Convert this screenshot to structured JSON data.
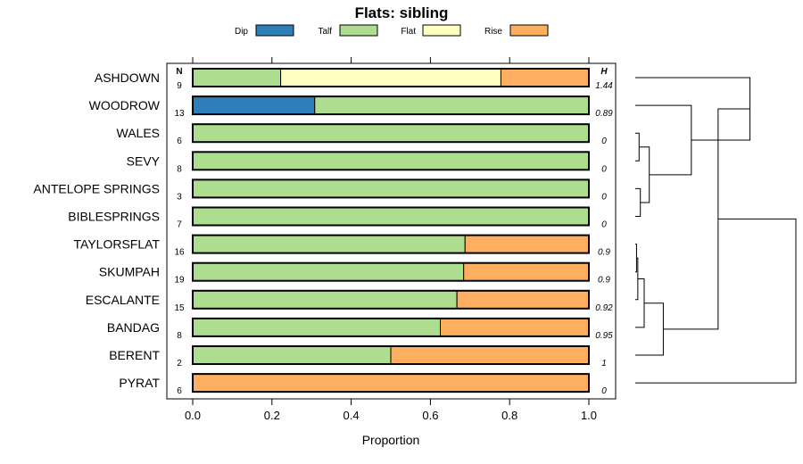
{
  "chart_data": {
    "type": "bar",
    "stacked": true,
    "orientation": "horizontal",
    "title": "Flats: sibling",
    "xlabel": "Proportion",
    "xlim": [
      0,
      1
    ],
    "xticks": [
      "0.0",
      "0.2",
      "0.4",
      "0.6",
      "0.8",
      "1.0"
    ],
    "n_header": "N",
    "h_header": "H",
    "legend_position": "top",
    "legend": [
      {
        "name": "Dip",
        "color": "#2c7fb8"
      },
      {
        "name": "Talf",
        "color": "#addd8e"
      },
      {
        "name": "Flat",
        "color": "#ffffbf"
      },
      {
        "name": "Rise",
        "color": "#fdae61"
      }
    ],
    "categories": [
      "ASHDOWN",
      "WOODROW",
      "WALES",
      "SEVY",
      "ANTELOPE SPRINGS",
      "BIBLESPRINGS",
      "TAYLORSFLAT",
      "SKUMPAH",
      "ESCALANTE",
      "BANDAG",
      "BERENT",
      "PYRAT"
    ],
    "n": [
      "9",
      "13",
      "6",
      "8",
      "3",
      "7",
      "16",
      "19",
      "15",
      "8",
      "2",
      "6"
    ],
    "h": [
      "1.44",
      "0.89",
      "0",
      "0",
      "0",
      "0",
      "0.9",
      "0.9",
      "0.92",
      "0.95",
      "1",
      "0"
    ],
    "series": [
      {
        "name": "Dip",
        "values": [
          0,
          0.308,
          0,
          0,
          0,
          0,
          0,
          0,
          0,
          0,
          0,
          0
        ]
      },
      {
        "name": "Talf",
        "values": [
          0.222,
          0.692,
          1,
          1,
          1,
          1,
          0.6875,
          0.684,
          0.667,
          0.625,
          0.5,
          0
        ]
      },
      {
        "name": "Flat",
        "values": [
          0.556,
          0,
          0,
          0,
          0,
          0,
          0,
          0,
          0,
          0,
          0,
          0
        ]
      },
      {
        "name": "Rise",
        "values": [
          0.222,
          0,
          0,
          0,
          0,
          0,
          0.3125,
          0.316,
          0.333,
          0.375,
          0.5,
          1
        ]
      }
    ],
    "dendrogram": {
      "type": "hierarchical-clustering",
      "leaf_order": [
        "ASHDOWN",
        "WOODROW",
        "WALES",
        "SEVY",
        "ANTELOPE SPRINGS",
        "BIBLESPRINGS",
        "TAYLORSFLAT",
        "SKUMPAH",
        "ESCALANTE",
        "BANDAG",
        "BERENT",
        "PYRAT"
      ],
      "merges": [
        {
          "a": 4,
          "b": 5,
          "height": 0.04
        },
        {
          "a": 2,
          "b": 3,
          "height": 0.03
        },
        {
          "a": "m1",
          "b": "m0",
          "height": 0.11
        },
        {
          "a": 1,
          "b": "m2",
          "height": 0.44
        },
        {
          "a": 6,
          "b": 7,
          "height": 0.01
        },
        {
          "a": "m4",
          "b": 8,
          "height": 0.02
        },
        {
          "a": "m5",
          "b": 9,
          "height": 0.07
        },
        {
          "a": "m6",
          "b": 10,
          "height": 0.22
        },
        {
          "a": 0,
          "b": "m3",
          "height": 0.9
        },
        {
          "a": "m8",
          "b": "m7",
          "height": 0.65
        },
        {
          "a": "m9",
          "b": 11,
          "height": 1.26
        }
      ]
    }
  }
}
